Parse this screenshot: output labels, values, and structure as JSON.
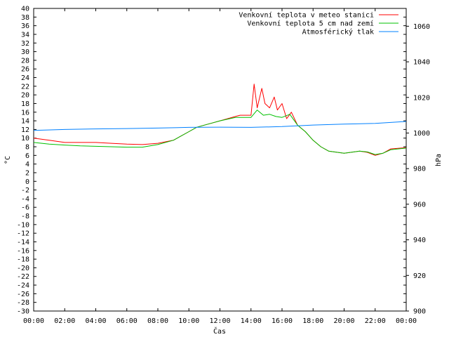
{
  "chart_data": {
    "type": "line",
    "xlabel": "Čas",
    "ylabel_left": "°C",
    "ylabel_right": "hPa",
    "ylim_left": [
      -30,
      40
    ],
    "ylim_right": [
      900,
      1070
    ],
    "xlim_hours": [
      0,
      24
    ],
    "x_ticks": [
      "00:00",
      "02:00",
      "04:00",
      "06:00",
      "08:00",
      "10:00",
      "12:00",
      "14:00",
      "16:00",
      "18:00",
      "20:00",
      "22:00",
      "00:00"
    ],
    "y_ticks_left": [
      40,
      38,
      36,
      34,
      32,
      30,
      28,
      26,
      24,
      22,
      20,
      18,
      16,
      14,
      12,
      10,
      8,
      6,
      4,
      2,
      0,
      -2,
      -4,
      -6,
      -8,
      -10,
      -12,
      -14,
      -16,
      -18,
      -20,
      -22,
      -24,
      -26,
      -28,
      -30
    ],
    "y_ticks_right": [
      1060,
      1040,
      1020,
      1000,
      980,
      960,
      940,
      920,
      900
    ],
    "legend_position": "top-right",
    "series": [
      {
        "name": "Venkovní teplota v meteo stanici",
        "color": "#ff0000",
        "axis": "left",
        "x": [
          0,
          1,
          2,
          3,
          4,
          5,
          6,
          7,
          8,
          9,
          10,
          10.5,
          11,
          11.5,
          12,
          13,
          13.3,
          13.5,
          14,
          14.2,
          14.4,
          14.7,
          14.9,
          15.2,
          15.5,
          15.7,
          16,
          16.3,
          16.6,
          17,
          17.5,
          18,
          18.5,
          19,
          20,
          21,
          21.5,
          22,
          22.5,
          23,
          24
        ],
        "y": [
          10,
          9.5,
          9,
          9,
          9,
          8.8,
          8.6,
          8.5,
          8.8,
          9.5,
          11.5,
          12.5,
          13,
          13.5,
          14,
          15,
          15.3,
          15.3,
          15.3,
          22.5,
          17,
          21.5,
          18,
          17,
          19.5,
          16.5,
          18,
          14.5,
          16,
          13,
          11.5,
          9.5,
          8,
          7,
          6.5,
          7,
          6.7,
          6,
          6.5,
          7.5,
          7.8
        ]
      },
      {
        "name": "Venkovní teplota 5 cm nad zemí",
        "color": "#00c000",
        "axis": "left",
        "x": [
          0,
          1,
          2,
          3,
          4,
          5,
          6,
          7,
          8,
          9,
          10,
          10.5,
          11,
          11.5,
          12,
          13,
          13.3,
          13.5,
          14,
          14.4,
          14.8,
          15.2,
          15.6,
          16,
          16.5,
          17,
          17.5,
          18,
          18.5,
          19,
          20,
          21,
          21.5,
          22,
          22.5,
          23,
          24
        ],
        "y": [
          9,
          8.6,
          8.4,
          8.2,
          8.1,
          8,
          7.9,
          7.9,
          8.5,
          9.5,
          11.5,
          12.5,
          13,
          13.5,
          14,
          14.8,
          14.8,
          14.8,
          14.8,
          16.5,
          15.3,
          15.5,
          15,
          14.8,
          15.5,
          13,
          11.5,
          9.5,
          8,
          7,
          6.5,
          7,
          6.8,
          6.2,
          6.5,
          7.3,
          7.7
        ]
      },
      {
        "name": "Atmosférický tlak",
        "color": "#0080ff",
        "axis": "right",
        "x": [
          0,
          2,
          4,
          6,
          8,
          10,
          12,
          14,
          16,
          18,
          20,
          22,
          24
        ],
        "y": [
          1001.5,
          1002,
          1002.3,
          1002.5,
          1002.8,
          1003.2,
          1003.3,
          1003.2,
          1003.6,
          1004.5,
          1005,
          1005.4,
          1006.5
        ]
      }
    ]
  }
}
